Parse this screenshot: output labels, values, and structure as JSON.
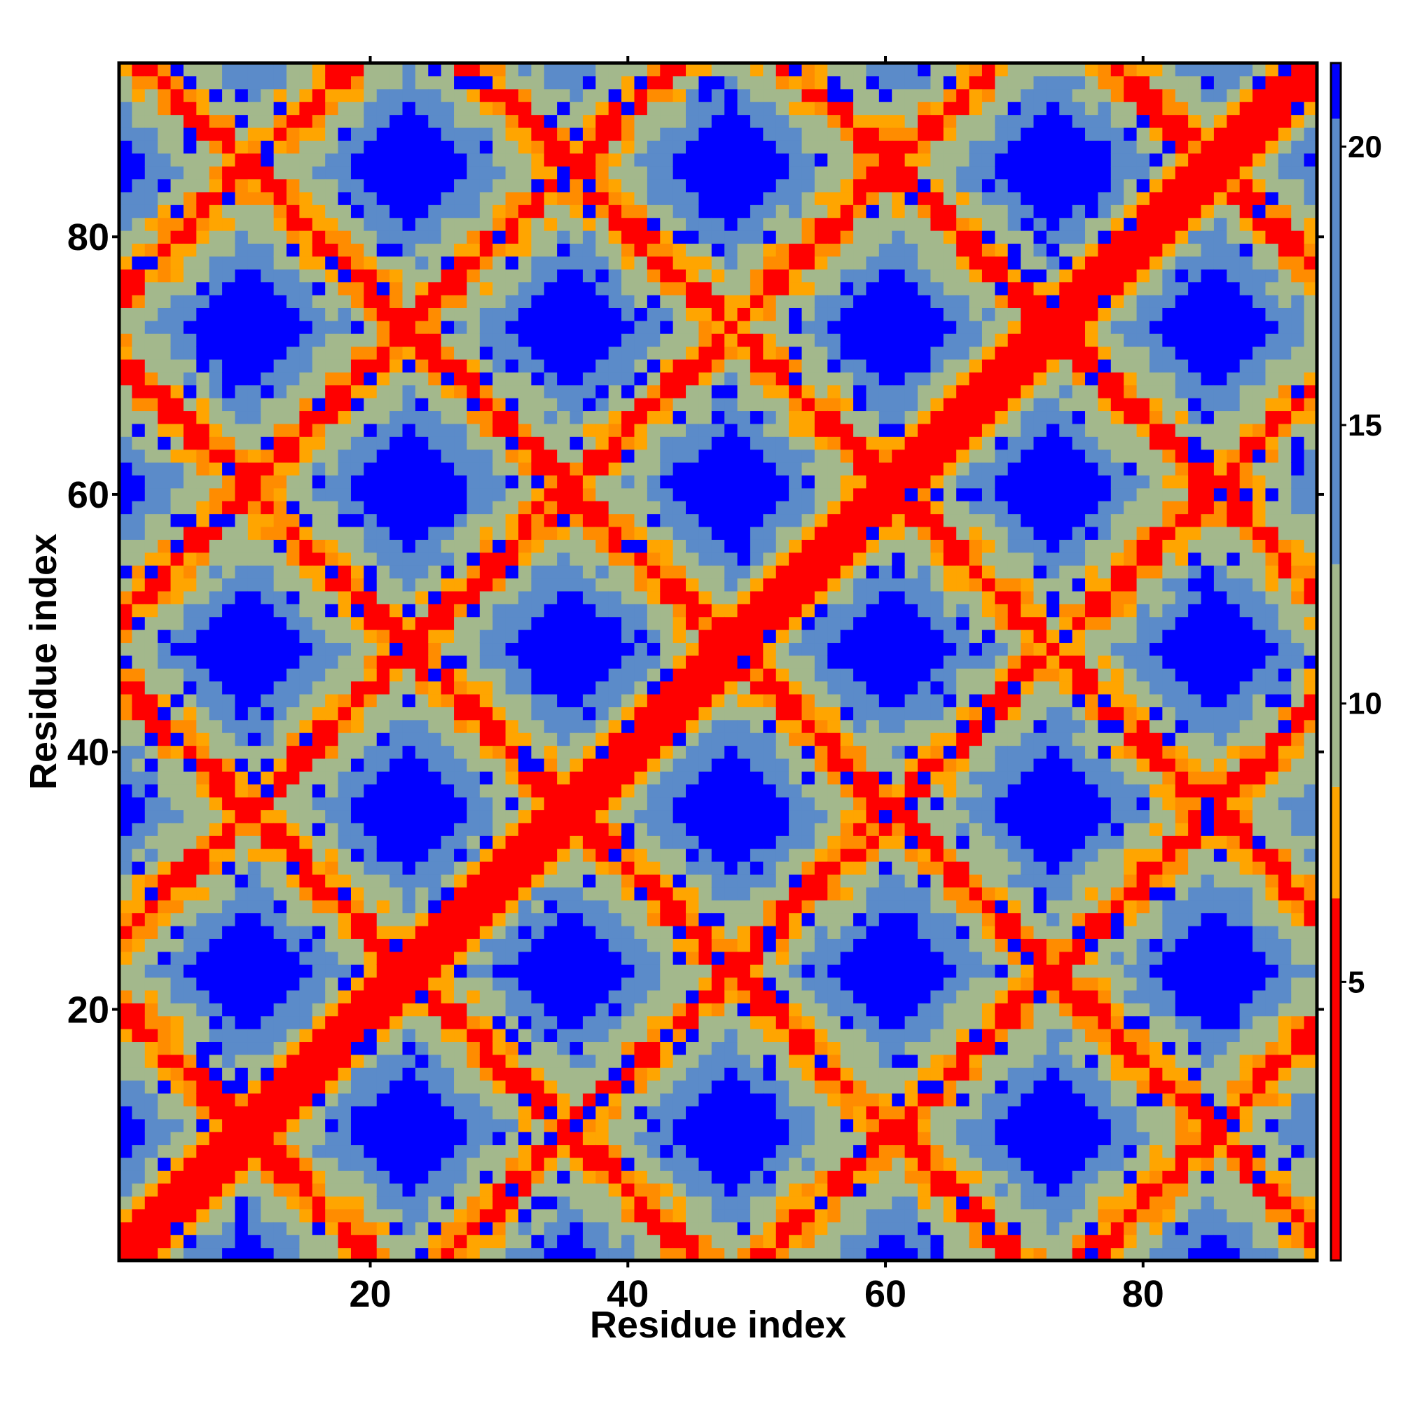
{
  "chart_data": {
    "type": "heatmap",
    "title": "",
    "xlabel": "Residue index",
    "ylabel": "Residue index",
    "n_residues": 93,
    "xlim": [
      1,
      93
    ],
    "ylim": [
      1,
      93
    ],
    "x_ticks": [
      20,
      40,
      60,
      80
    ],
    "x_tick_labels": [
      "20",
      "40",
      "60",
      "80"
    ],
    "y_ticks": [
      20,
      40,
      60,
      80
    ],
    "y_tick_labels": [
      "20",
      "40",
      "60",
      "80"
    ],
    "colorbar": {
      "ticks": [
        5,
        10,
        15,
        20
      ],
      "tick_labels": [
        "5",
        "10",
        "15",
        "20"
      ],
      "range": [
        0,
        21.5
      ],
      "position": "right",
      "segments": [
        {
          "from": 0,
          "to": 6.5,
          "color": "#ff0000"
        },
        {
          "from": 6.5,
          "to": 8.5,
          "color": "#ffa500"
        },
        {
          "from": 8.5,
          "to": 12.5,
          "color": "#a3b88c"
        },
        {
          "from": 12.5,
          "to": 20.5,
          "color": "#5b8bc9"
        },
        {
          "from": 20.5,
          "to": 21.5,
          "color": "#0000ff"
        }
      ]
    },
    "colors": {
      "contact": "#ff0000",
      "close": "#ff8c00",
      "near": "#ffa500",
      "mid": "#a3b88c",
      "far": "#5b8bc9",
      "none": "#0000ff"
    },
    "description_of_values": "Symmetric residue-residue distance map; main diagonal and anti-diagonal bands in contact range, square blue voids where no contact.",
    "feature_bands": {
      "diagonal": {
        "value": 2.0
      },
      "anti_diagonal_center": 96,
      "band_period": 25,
      "void_value": 21
    }
  }
}
